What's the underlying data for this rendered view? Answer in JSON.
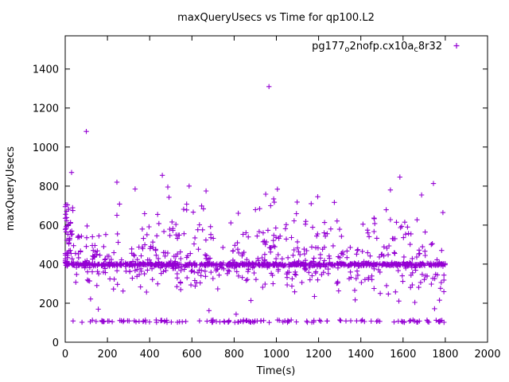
{
  "title": "maxQueryUsecs vs Time for qp100.L2",
  "axes": {
    "x": {
      "label": "Time(s)",
      "min": 0,
      "max": 2000,
      "tick_labels": [
        "0",
        "200",
        "400",
        "600",
        "800",
        "1000",
        "1200",
        "1400",
        "1600",
        "1800",
        "2000"
      ]
    },
    "y": {
      "label": "maxQueryUsecs",
      "min": 0,
      "max": 1570,
      "tick_labels": [
        "0",
        "200",
        "400",
        "600",
        "800",
        "1000",
        "1200",
        "1400"
      ]
    }
  },
  "legend": {
    "label_plain": "pg177_o2nofp.cx10a_c8r32",
    "segments": [
      {
        "t": "pg177",
        "sub": false
      },
      {
        "t": "o",
        "sub": true
      },
      {
        "t": "2nofp.cx10a",
        "sub": false
      },
      {
        "t": "c",
        "sub": true
      },
      {
        "t": "8r32",
        "sub": false
      }
    ],
    "marker": "plus"
  },
  "style": {
    "point_color": "#9400d3",
    "axis_color": "#000000",
    "text_color": "#000000",
    "background": "#ffffff"
  },
  "chart_data": {
    "type": "scatter",
    "title": "maxQueryUsecs vs Time for qp100.L2",
    "xlabel": "Time(s)",
    "ylabel": "maxQueryUsecs",
    "xlim": [
      0,
      2000
    ],
    "ylim": [
      0,
      1570
    ],
    "xticks": [
      0,
      200,
      400,
      600,
      800,
      1000,
      1200,
      1400,
      1600,
      1800,
      2000
    ],
    "yticks": [
      0,
      200,
      400,
      600,
      800,
      1000,
      1200,
      1400
    ],
    "grid": false,
    "legend_position": "top-right-inside",
    "series_name": "pg177_o2nofp.cx10a_c8r32",
    "marker": "plus",
    "color": "#9400d3",
    "x_data_range": [
      0,
      1800
    ],
    "points_encoding": "clusters (seeded pseudo-random, visual estimate of ~1300 unlabeled points) plus explicitly-read outliers",
    "seed": 42,
    "clusters": [
      {
        "name": "dense-band-400",
        "count": 640,
        "x": [
          0,
          1800
        ],
        "dist": "triangular",
        "y_center": 398,
        "y_spread": 9
      },
      {
        "name": "mid-scatter-240-550",
        "count": 430,
        "x": [
          0,
          1800
        ],
        "dist": "triangular",
        "y_center": 395,
        "y_spread": 155
      },
      {
        "name": "upper-scatter-530-790",
        "count": 115,
        "x": [
          0,
          1800
        ],
        "dist": "low-biased",
        "y": [
          530,
          790
        ]
      },
      {
        "name": "low-line-105",
        "count": 130,
        "x": [
          0,
          1800
        ],
        "dist": "uniform",
        "y": [
          101,
          114
        ]
      },
      {
        "name": "left-edge-cluster",
        "count": 40,
        "x": [
          0,
          60
        ],
        "x_bias": "left",
        "dist": "uniform",
        "y": [
          380,
          720
        ]
      },
      {
        "name": "sparse-140-250",
        "count": 12,
        "x": [
          0,
          1800
        ],
        "dist": "uniform",
        "y": [
          140,
          250
        ]
      }
    ],
    "outliers": [
      [
        965,
        1310
      ],
      [
        100,
        1080
      ],
      [
        30,
        870
      ],
      [
        245,
        820
      ],
      [
        331,
        785
      ],
      [
        460,
        855
      ],
      [
        486,
        795
      ],
      [
        587,
        800
      ],
      [
        667,
        775
      ],
      [
        1005,
        784
      ],
      [
        1540,
        780
      ],
      [
        1585,
        846
      ],
      [
        1744,
        813
      ]
    ]
  }
}
